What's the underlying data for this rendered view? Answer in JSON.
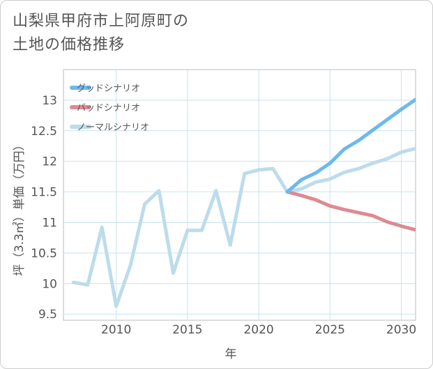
{
  "chart_data": {
    "type": "line",
    "title_lines": [
      "山梨県甲府市上阿原町の",
      "土地の価格推移"
    ],
    "xlabel": "年",
    "ylabel": "坪（3.3㎡）単価（万円）",
    "xlim": [
      2006.3,
      2031
    ],
    "ylim": [
      9.4,
      13.5
    ],
    "x_ticks": [
      2010,
      2015,
      2020,
      2025,
      2030
    ],
    "y_ticks": [
      9.5,
      10,
      10.5,
      11,
      11.5,
      12,
      12.5,
      13
    ],
    "x_tick_labels": [
      "2010",
      "2015",
      "2020",
      "2025",
      "2030"
    ],
    "y_tick_labels": [
      "9.5",
      "10",
      "10.5",
      "11",
      "11.5",
      "12",
      "12.5",
      "13"
    ],
    "grid": true,
    "legend_position": "top-left",
    "series": [
      {
        "name": "グッドシナリオ",
        "color": "#6cb9ec",
        "x": [
          2022,
          2023,
          2024,
          2025,
          2026,
          2027,
          2028,
          2029,
          2030,
          2031
        ],
        "y": [
          11.5,
          11.7,
          11.81,
          11.97,
          12.2,
          12.34,
          12.51,
          12.68,
          12.85,
          13.01
        ]
      },
      {
        "name": "バッドシナリオ",
        "color": "#dd8a91",
        "x": [
          2022,
          2023,
          2024,
          2025,
          2026,
          2027,
          2028,
          2029,
          2030,
          2031
        ],
        "y": [
          11.5,
          11.44,
          11.37,
          11.27,
          11.21,
          11.16,
          11.11,
          11.01,
          10.94,
          10.88
        ]
      },
      {
        "name": "ノーマルシナリオ",
        "color": "#bcdcea",
        "x": [
          2007,
          2008,
          2009,
          2010,
          2011,
          2012,
          2013,
          2014,
          2015,
          2016,
          2017,
          2018,
          2019,
          2020,
          2021,
          2022,
          2023,
          2024,
          2025,
          2026,
          2027,
          2028,
          2029,
          2030,
          2031
        ],
        "y": [
          10.02,
          9.98,
          10.92,
          9.63,
          10.3,
          11.3,
          11.52,
          10.17,
          10.87,
          10.87,
          11.52,
          10.63,
          11.8,
          11.86,
          11.88,
          11.5,
          11.55,
          11.66,
          11.71,
          11.82,
          11.88,
          11.97,
          12.04,
          12.15,
          12.21
        ]
      }
    ]
  }
}
